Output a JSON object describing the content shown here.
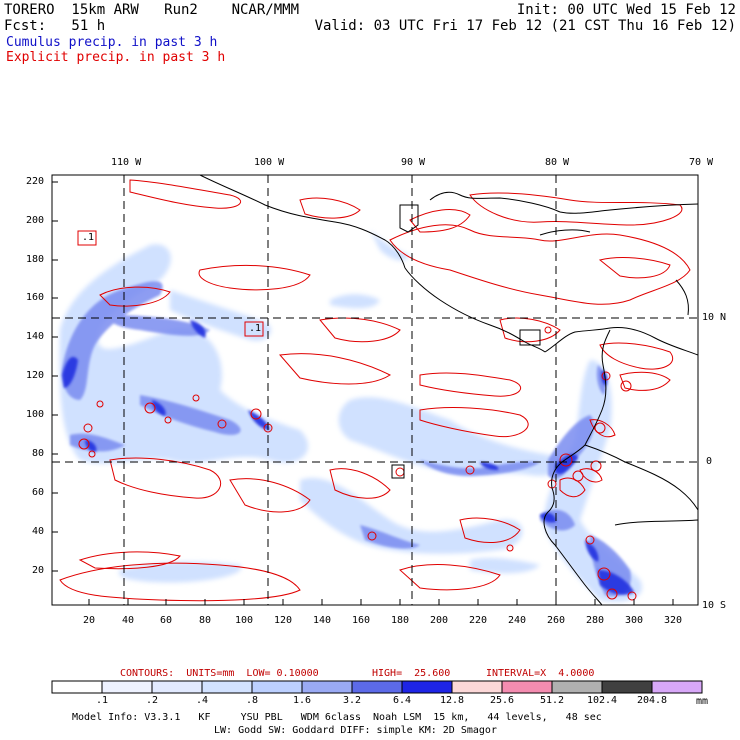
{
  "header": {
    "left_line1": "TORERO  15km ARW   Run2    NCAR/MMM",
    "left_line2": "Fcst:   51 h",
    "right_line1": "Init: 00 UTC Wed 15 Feb 12",
    "right_line2": "Valid: 03 UTC Fri 17 Feb 12 (21 CST Thu 16 Feb 12)",
    "legend_blue": "Cumulus precip. in past 3 h",
    "legend_red": "Explicit precip. in past 3 h"
  },
  "map": {
    "top_lon_labels": [
      "110 W",
      "100 W",
      "90 W",
      "80 W",
      "70 W"
    ],
    "right_lat_labels": [
      "10 N",
      "0",
      "10 S"
    ],
    "y_ticks": [
      "220",
      "200",
      "180",
      "160",
      "140",
      "120",
      "100",
      "80",
      "60",
      "40",
      "20"
    ],
    "x_ticks": [
      "20",
      "40",
      "60",
      "80",
      "100",
      "120",
      "140",
      "160",
      "180",
      "200",
      "220",
      "240",
      "260",
      "280",
      "300",
      "320"
    ],
    "box_labels": [
      ".1",
      ".1"
    ],
    "colors": {
      "cumulus_light": "#c8dcff",
      "cumulus_mid": "#7a8cf0",
      "cumulus_dark": "#2030e0",
      "explicit_contour": "#e00000",
      "coastline": "#000000",
      "grid": "#000000"
    }
  },
  "contours": {
    "units": "CONTOURS:  UNITS=mm  LOW= 0.10000",
    "high": "HIGH=  25.600",
    "interval": "INTERVAL=X  4.0000"
  },
  "colorbar": {
    "labels": [
      ".1",
      ".2",
      ".4",
      ".8",
      "1.6",
      "3.2",
      "6.4",
      "12.8",
      "25.6",
      "51.2",
      "102.4",
      "204.8"
    ],
    "unit": "mm",
    "colors": [
      "#ffffff",
      "#eef2ff",
      "#e2eaff",
      "#d2e2ff",
      "#bcd0ff",
      "#9aaaf4",
      "#5c6ae8",
      "#1e24e6",
      "#fcd8d8",
      "#f48cb0",
      "#b0b0b0",
      "#404040",
      "#d8a8f8"
    ]
  },
  "footer": {
    "line1": "Model Info: V3.3.1   KF     YSU PBL   WDM 6class  Noah LSM  15 km,   44 levels,   48 sec",
    "line2": "LW: Godd SW: Goddard DIFF: simple KM: 2D Smagor"
  }
}
